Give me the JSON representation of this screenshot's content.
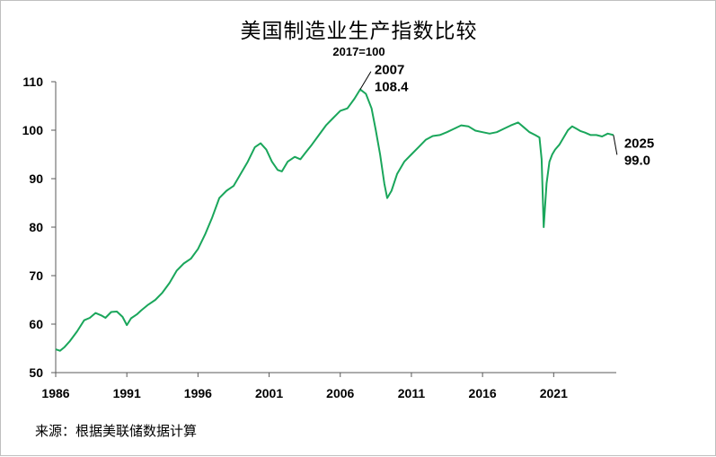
{
  "title": "美国制造业生产指数比较",
  "subtitle": "2017=100",
  "source": "来源：根据美联储数据计算",
  "chart_data": {
    "type": "line",
    "title": "美国制造业生产指数比较",
    "subtitle": "2017=100",
    "xlabel": "",
    "ylabel": "",
    "xlim": [
      1986,
      2025.4
    ],
    "ylim": [
      50,
      110
    ],
    "xticks": [
      "1986",
      "1991",
      "1996",
      "2001",
      "2006",
      "2011",
      "2016",
      "2021"
    ],
    "yticks": [
      "50",
      "60",
      "70",
      "80",
      "90",
      "100",
      "110"
    ],
    "grid": false,
    "line_color": "#1aa65b",
    "series": [
      {
        "name": "",
        "x": [
          1986.0,
          1986.3,
          1986.6,
          1987.0,
          1987.5,
          1988.0,
          1988.4,
          1988.8,
          1989.2,
          1989.5,
          1989.9,
          1990.3,
          1990.7,
          1991.0,
          1991.3,
          1991.7,
          1992.0,
          1992.5,
          1993.0,
          1993.5,
          1994.0,
          1994.5,
          1995.0,
          1995.5,
          1996.0,
          1996.5,
          1997.0,
          1997.5,
          1998.0,
          1998.5,
          1999.0,
          1999.5,
          2000.0,
          2000.4,
          2000.8,
          2001.2,
          2001.6,
          2001.9,
          2002.3,
          2002.8,
          2003.2,
          2003.6,
          2004.0,
          2004.5,
          2005.0,
          2005.5,
          2006.0,
          2006.5,
          2007.0,
          2007.4,
          2007.8,
          2008.2,
          2008.5,
          2008.8,
          2009.1,
          2009.3,
          2009.6,
          2010.0,
          2010.5,
          2011.0,
          2011.5,
          2012.0,
          2012.5,
          2013.0,
          2013.5,
          2014.0,
          2014.5,
          2015.0,
          2015.5,
          2016.0,
          2016.5,
          2017.0,
          2017.5,
          2018.0,
          2018.5,
          2018.9,
          2019.3,
          2019.7,
          2020.0,
          2020.15,
          2020.3,
          2020.5,
          2020.7,
          2020.9,
          2021.1,
          2021.4,
          2021.7,
          2022.0,
          2022.3,
          2022.6,
          2022.9,
          2023.2,
          2023.6,
          2024.0,
          2024.4,
          2024.8,
          2025.2
        ],
        "values": [
          54.8,
          54.5,
          55.2,
          56.5,
          58.5,
          60.8,
          61.3,
          62.3,
          61.8,
          61.3,
          62.5,
          62.6,
          61.5,
          59.8,
          61.2,
          62.0,
          62.8,
          64.0,
          65.0,
          66.5,
          68.5,
          71.0,
          72.5,
          73.5,
          75.5,
          78.5,
          82.0,
          86.0,
          87.5,
          88.5,
          91.0,
          93.5,
          96.5,
          97.3,
          96.0,
          93.5,
          91.8,
          91.5,
          93.5,
          94.5,
          94.0,
          95.5,
          97.0,
          99.0,
          101.0,
          102.5,
          104.0,
          104.5,
          106.5,
          108.4,
          107.5,
          104.5,
          100.0,
          95.0,
          89.0,
          86.0,
          87.5,
          91.0,
          93.5,
          95.0,
          96.5,
          98.0,
          98.8,
          99.0,
          99.6,
          100.3,
          101.0,
          100.8,
          99.9,
          99.6,
          99.3,
          99.6,
          100.3,
          101.0,
          101.6,
          100.6,
          99.6,
          99.0,
          98.5,
          94.0,
          80.0,
          89.0,
          93.5,
          95.0,
          96.0,
          97.0,
          98.5,
          100.0,
          100.8,
          100.3,
          99.8,
          99.5,
          99.0,
          99.0,
          98.7,
          99.3,
          99.0
        ]
      }
    ],
    "annotations": [
      {
        "x": 2007.4,
        "y": 108.4,
        "year": "2007",
        "value": "108.4",
        "placement": "upper-right"
      },
      {
        "x": 2025.2,
        "y": 99.0,
        "year": "2025",
        "value": "99.0",
        "placement": "lower-right"
      }
    ]
  }
}
